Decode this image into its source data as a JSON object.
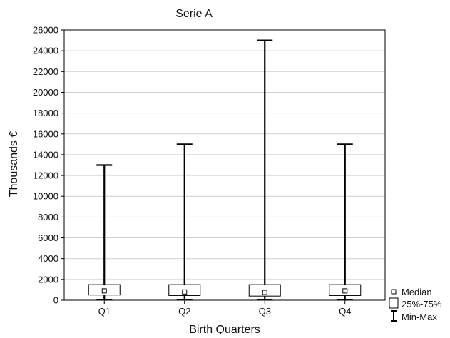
{
  "chart_data": {
    "type": "boxplot",
    "title": "Serie A",
    "xlabel": "Birth Quarters",
    "ylabel": "Thousands €",
    "ylim": [
      0,
      26000
    ],
    "yticks": [
      0,
      2000,
      4000,
      6000,
      8000,
      10000,
      12000,
      14000,
      16000,
      18000,
      20000,
      22000,
      24000,
      26000
    ],
    "grid": true,
    "legend_position": "bottom-right",
    "categories": [
      "Q1",
      "Q2",
      "Q3",
      "Q4"
    ],
    "boxes": [
      {
        "category": "Q1",
        "min": 50,
        "q1": 500,
        "median": 900,
        "q3": 1500,
        "max": 13000
      },
      {
        "category": "Q2",
        "min": 50,
        "q1": 450,
        "median": 800,
        "q3": 1500,
        "max": 15000
      },
      {
        "category": "Q3",
        "min": 50,
        "q1": 400,
        "median": 750,
        "q3": 1500,
        "max": 25000
      },
      {
        "category": "Q4",
        "min": 50,
        "q1": 450,
        "median": 900,
        "q3": 1500,
        "max": 15000
      }
    ],
    "legend": [
      {
        "key": "median",
        "label": "Median"
      },
      {
        "key": "iqr",
        "label": "25%-75%"
      },
      {
        "key": "range",
        "label": "Min-Max"
      }
    ]
  }
}
